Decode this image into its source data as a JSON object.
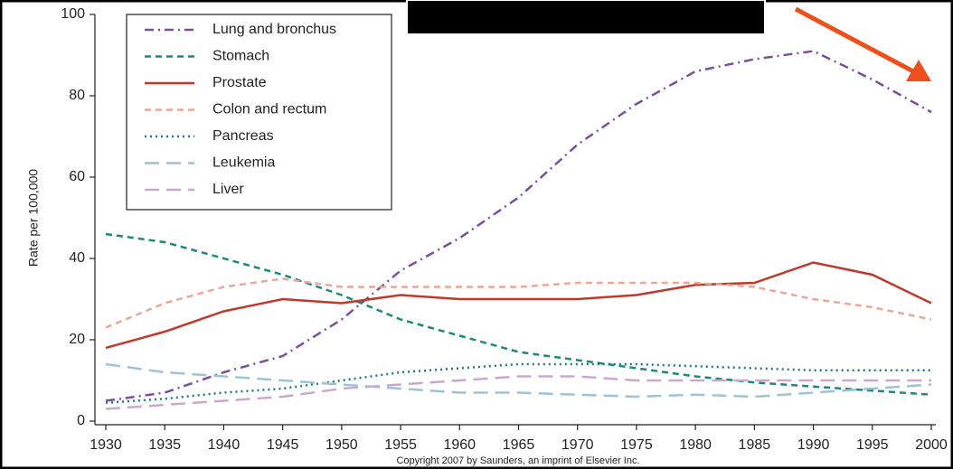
{
  "chart_data": {
    "type": "line",
    "y_label": "Rate per 100,000",
    "footnote": "Copyright 2007 by Saunders, an imprint of Elsevier Inc.",
    "x": [
      1930,
      1935,
      1940,
      1945,
      1950,
      1955,
      1960,
      1965,
      1970,
      1975,
      1980,
      1985,
      1990,
      1995,
      2000
    ],
    "xlim": [
      1930,
      2000
    ],
    "xticks": [
      1930,
      1935,
      1940,
      1945,
      1950,
      1955,
      1960,
      1965,
      1970,
      1975,
      1980,
      1985,
      1990,
      1995,
      2000
    ],
    "ylim": [
      0,
      100
    ],
    "yticks": [
      0,
      20,
      40,
      60,
      80,
      100
    ],
    "legend": "upper left",
    "series": [
      {
        "name": "Lung and bronchus",
        "color": "#7b4f9e",
        "dash": "dashdot",
        "values": [
          5,
          7,
          12,
          16,
          25,
          37,
          45,
          55,
          68,
          78,
          86,
          89,
          91,
          84,
          76
        ]
      },
      {
        "name": "Stomach",
        "color": "#1a8a7a",
        "dash": "dashed",
        "values": [
          46,
          44,
          40,
          36,
          31,
          25,
          21,
          17,
          15,
          13,
          11,
          9.5,
          8.5,
          7.5,
          6.5
        ]
      },
      {
        "name": "Prostate",
        "color": "#c0392b",
        "dash": "solid",
        "values": [
          18,
          22,
          27,
          30,
          29,
          31,
          30,
          30,
          30,
          31,
          33.5,
          34,
          39,
          36,
          29
        ]
      },
      {
        "name": "Colon and rectum",
        "color": "#e8a89a",
        "dash": "dashed",
        "values": [
          23,
          29,
          33,
          35,
          33,
          33,
          33,
          33,
          34,
          34,
          34,
          33,
          30,
          28,
          25
        ]
      },
      {
        "name": "Pancreas",
        "color": "#1a7a8a",
        "dash": "dotted",
        "values": [
          4.5,
          5.5,
          7,
          8,
          10,
          12,
          13,
          14,
          14,
          14,
          13.5,
          13,
          12.5,
          12.5,
          12.5
        ]
      },
      {
        "name": "Leukemia",
        "color": "#9cc3d8",
        "dash": "longdash",
        "values": [
          14,
          12,
          11,
          10,
          9,
          8,
          7,
          7,
          6.5,
          6,
          6.5,
          6,
          7,
          8,
          9
        ]
      },
      {
        "name": "Liver",
        "color": "#c9a8d0",
        "dash": "longdash",
        "values": [
          3,
          4,
          5,
          6,
          8,
          9,
          10,
          11,
          11,
          10,
          10,
          10,
          10,
          10,
          10
        ]
      }
    ]
  }
}
